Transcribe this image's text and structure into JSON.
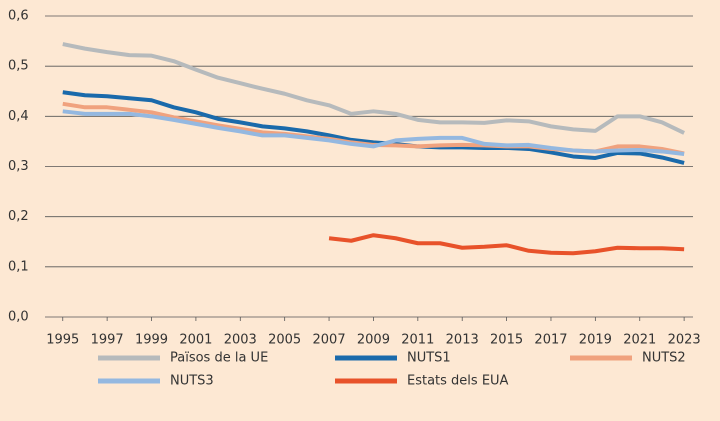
{
  "chart_data": {
    "type": "line",
    "x": [
      1995,
      1996,
      1997,
      1998,
      1999,
      2000,
      2001,
      2002,
      2003,
      2004,
      2005,
      2006,
      2007,
      2008,
      2009,
      2010,
      2011,
      2012,
      2013,
      2014,
      2015,
      2016,
      2017,
      2018,
      2019,
      2020,
      2021,
      2022,
      2023
    ],
    "series": [
      {
        "name": "Països de la UE",
        "color": "#b6babc",
        "values": [
          0.544,
          0.535,
          0.528,
          0.522,
          0.521,
          0.51,
          0.493,
          0.477,
          0.466,
          0.455,
          0.445,
          0.432,
          0.422,
          0.405,
          0.41,
          0.405,
          0.393,
          0.388,
          0.388,
          0.387,
          0.392,
          0.39,
          0.38,
          0.374,
          0.371,
          0.4,
          0.4,
          0.388,
          0.367
        ]
      },
      {
        "name": "NUTS1",
        "color": "#1a6aab",
        "values": [
          0.448,
          0.442,
          0.44,
          0.436,
          0.432,
          0.418,
          0.408,
          0.395,
          0.388,
          0.38,
          0.376,
          0.37,
          0.362,
          0.353,
          0.348,
          0.345,
          0.34,
          0.338,
          0.338,
          0.337,
          0.337,
          0.335,
          0.328,
          0.32,
          0.317,
          0.327,
          0.326,
          0.318,
          0.307
        ]
      },
      {
        "name": "NUTS2",
        "color": "#f0a27e",
        "values": [
          0.425,
          0.418,
          0.418,
          0.413,
          0.408,
          0.398,
          0.39,
          0.382,
          0.375,
          0.368,
          0.365,
          0.36,
          0.355,
          0.348,
          0.343,
          0.342,
          0.34,
          0.342,
          0.343,
          0.342,
          0.34,
          0.34,
          0.335,
          0.332,
          0.33,
          0.34,
          0.34,
          0.335,
          0.326
        ]
      },
      {
        "name": "NUTS3",
        "color": "#94b8e0",
        "values": [
          0.41,
          0.405,
          0.405,
          0.405,
          0.4,
          0.393,
          0.385,
          0.377,
          0.37,
          0.362,
          0.362,
          0.357,
          0.352,
          0.345,
          0.34,
          0.352,
          0.355,
          0.357,
          0.357,
          0.345,
          0.342,
          0.343,
          0.337,
          0.332,
          0.33,
          0.332,
          0.333,
          0.33,
          0.325
        ]
      },
      {
        "name": "Estats dels EUA",
        "color": "#e8522a",
        "values": [
          null,
          null,
          null,
          null,
          null,
          null,
          null,
          null,
          null,
          null,
          null,
          null,
          0.157,
          0.152,
          0.163,
          0.157,
          0.147,
          0.147,
          0.138,
          0.14,
          0.143,
          0.132,
          0.128,
          0.127,
          0.131,
          0.138,
          0.137,
          0.137,
          0.135
        ]
      }
    ],
    "xlim": [
      1994.2,
      2023.4
    ],
    "xticks": [
      1995,
      1997,
      1999,
      2001,
      2003,
      2005,
      2007,
      2009,
      2011,
      2013,
      2015,
      2017,
      2019,
      2021,
      2023
    ],
    "ylim": [
      0,
      0.6
    ],
    "yticks": [
      {
        "value": 0,
        "label": "0,0"
      },
      {
        "value": 0.1,
        "label": "0,1"
      },
      {
        "value": 0.2,
        "label": "0,2"
      },
      {
        "value": 0.3,
        "label": "0,3"
      },
      {
        "value": 0.4,
        "label": "0,4"
      },
      {
        "value": 0.5,
        "label": "0,5"
      },
      {
        "value": 0.6,
        "label": "0,6"
      }
    ],
    "grid": true,
    "legend": "bottom"
  }
}
